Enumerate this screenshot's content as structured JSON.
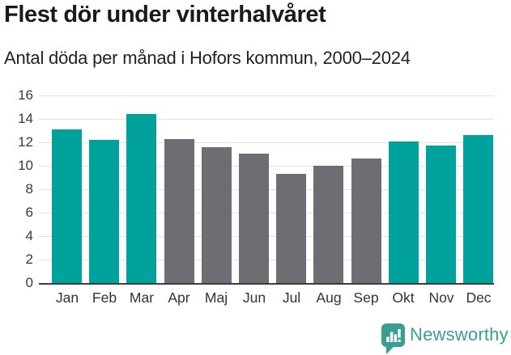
{
  "header": {
    "title": "Flest dör under vinterhalvåret",
    "subtitle": "Antal döda per månad i Hofors kommun, 2000–2024"
  },
  "chart_data": {
    "type": "bar",
    "title": "Flest dör under vinterhalvåret",
    "subtitle": "Antal döda per månad i Hofors kommun, 2000–2024",
    "categories": [
      "Jan",
      "Feb",
      "Mar",
      "Apr",
      "Maj",
      "Jun",
      "Jul",
      "Aug",
      "Sep",
      "Okt",
      "Nov",
      "Dec"
    ],
    "values": [
      13.1,
      12.2,
      14.4,
      12.3,
      11.6,
      11.0,
      9.3,
      10.0,
      10.6,
      12.1,
      11.7,
      12.6
    ],
    "bar_seasons": [
      "winter",
      "winter",
      "winter",
      "summer",
      "summer",
      "summer",
      "summer",
      "summer",
      "summer",
      "winter",
      "winter",
      "winter"
    ],
    "color_map": {
      "winter": "#00a29b",
      "summer": "#6e6d73"
    },
    "xlabel": "",
    "ylabel": "",
    "ylim": [
      0,
      16
    ],
    "yticks": [
      0,
      2,
      4,
      6,
      8,
      10,
      12,
      14,
      16
    ],
    "grid": "horizontal",
    "legend": "none"
  },
  "footer": {
    "brand": "Newsworthy",
    "brand_color": "#3a9e91",
    "icon": "bar-chart-speech-bubble-icon"
  },
  "colors": {
    "background": "#ffffff",
    "title_text": "#1a1a1a",
    "subtitle_text": "#222222",
    "axis_line": "#3d3d3d",
    "gridline": "#e2e2e2",
    "tick_text": "#3a3a3a"
  }
}
